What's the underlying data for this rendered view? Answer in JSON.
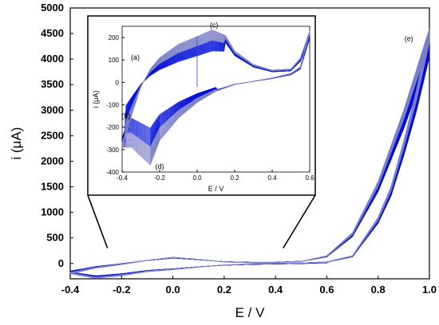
{
  "chart_data": [
    {
      "type": "line",
      "role": "main",
      "xlabel": "E / V",
      "ylabel": "i (μA)",
      "xlim": [
        -0.4,
        1.0
      ],
      "ylim": [
        -300,
        5000
      ],
      "x_ticks": [
        "-0.4",
        "-0.2",
        "0.0",
        "0.2",
        "0.4",
        "0.6",
        "0.8",
        "1.0"
      ],
      "y_ticks": [
        "0",
        "500",
        "1000",
        "1500",
        "2000",
        "2500",
        "3000",
        "3500",
        "4000",
        "4500",
        "5000"
      ],
      "series": [
        {
          "values_forward": [
            [
              -0.4,
              -200
            ],
            [
              -0.3,
              -90
            ],
            [
              -0.2,
              -20
            ],
            [
              -0.1,
              60
            ],
            [
              0.0,
              120
            ],
            [
              0.1,
              80
            ],
            [
              0.2,
              30
            ],
            [
              0.3,
              15
            ],
            [
              0.4,
              15
            ],
            [
              0.5,
              40
            ],
            [
              0.6,
              150
            ],
            [
              0.7,
              600
            ],
            [
              0.8,
              1600
            ],
            [
              0.9,
              3000
            ],
            [
              1.0,
              4600
            ]
          ],
          "values_reverse": [
            [
              1.0,
              4600
            ],
            [
              0.95,
              3400
            ],
            [
              0.9,
              2400
            ],
            [
              0.85,
              1500
            ],
            [
              0.8,
              900
            ],
            [
              0.7,
              150
            ],
            [
              0.6,
              30
            ],
            [
              0.5,
              10
            ],
            [
              0.4,
              0
            ],
            [
              0.3,
              -10
            ],
            [
              0.2,
              -30
            ],
            [
              0.1,
              -70
            ],
            [
              0.0,
              -120
            ],
            [
              -0.1,
              -160
            ],
            [
              -0.2,
              -240
            ],
            [
              -0.3,
              -290
            ],
            [
              -0.4,
              -200
            ]
          ]
        }
      ],
      "annotations": [
        {
          "label": "(e)",
          "x": 0.92,
          "y": 4350
        }
      ]
    },
    {
      "type": "line",
      "role": "inset",
      "xlabel": "E  /  V",
      "ylabel": "i (μA)",
      "xlim": [
        -0.4,
        0.6
      ],
      "ylim": [
        -400,
        250
      ],
      "x_ticks": [
        "-0.4",
        "-0.2",
        "0.0",
        "0.2",
        "0.4",
        "0.6"
      ],
      "y_ticks": [
        "-400",
        "-300",
        "-200",
        "-100",
        "0",
        "100",
        "200"
      ],
      "series": [
        {
          "values_forward": [
            [
              -0.4,
              -290
            ],
            [
              -0.35,
              -150
            ],
            [
              -0.3,
              -20
            ],
            [
              -0.25,
              60
            ],
            [
              -0.2,
              110
            ],
            [
              -0.1,
              170
            ],
            [
              0.0,
              205
            ],
            [
              0.08,
              235
            ],
            [
              0.15,
              210
            ],
            [
              0.2,
              140
            ],
            [
              0.3,
              80
            ],
            [
              0.4,
              55
            ],
            [
              0.5,
              60
            ],
            [
              0.55,
              110
            ],
            [
              0.6,
              230
            ]
          ],
          "values_reverse": [
            [
              0.6,
              230
            ],
            [
              0.55,
              70
            ],
            [
              0.5,
              40
            ],
            [
              0.4,
              20
            ],
            [
              0.3,
              5
            ],
            [
              0.2,
              -10
            ],
            [
              0.1,
              -40
            ],
            [
              0.0,
              -90
            ],
            [
              -0.1,
              -160
            ],
            [
              -0.2,
              -260
            ],
            [
              -0.25,
              -370
            ],
            [
              -0.3,
              -330
            ],
            [
              -0.35,
              -290
            ],
            [
              -0.4,
              -290
            ]
          ]
        }
      ],
      "annotations": [
        {
          "label": "(a)",
          "x": -0.33,
          "y": 100
        },
        {
          "label": "(b)",
          "x": -0.38,
          "y": -160
        },
        {
          "label": "(c)",
          "x": 0.09,
          "y": 245
        },
        {
          "label": "(d)",
          "x": -0.2,
          "y": -385
        }
      ]
    }
  ],
  "colors": {
    "trace_dark": "#0010d8",
    "trace_light": "#7a80c8",
    "axis": "#000000"
  }
}
